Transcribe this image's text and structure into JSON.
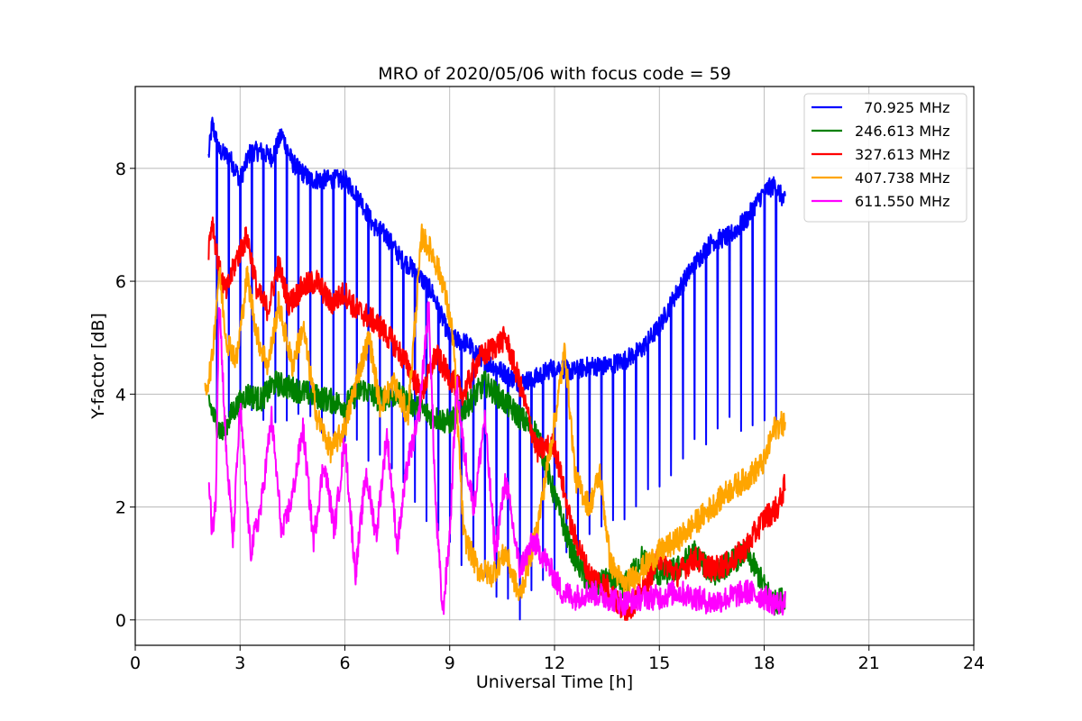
{
  "chart_data": {
    "type": "line",
    "title": "MRO of 2020/05/06 with focus code = 59",
    "xlabel": "Universal Time [h]",
    "ylabel": "Y-factor [dB]",
    "xlim": [
      0,
      24
    ],
    "ylim": [
      -0.45,
      9.45
    ],
    "xticks": [
      0,
      3,
      6,
      9,
      12,
      15,
      18,
      21,
      24
    ],
    "yticks": [
      0,
      2,
      4,
      6,
      8
    ],
    "grid": true,
    "legend_position": "top-right",
    "series": [
      {
        "name": "  70.925 MHz",
        "color": "#0000ff",
        "dips": true,
        "dip_floor": [
          [
            2.1,
            3.5
          ],
          [
            5.0,
            3.4
          ],
          [
            7.5,
            2.5
          ],
          [
            8.5,
            1.5
          ],
          [
            10.0,
            0.5
          ],
          [
            11.0,
            0.0
          ],
          [
            12.0,
            0.7
          ],
          [
            13.0,
            1.3
          ],
          [
            14.5,
            2.0
          ],
          [
            16.0,
            3.0
          ],
          [
            17.0,
            3.3
          ],
          [
            18.6,
            3.3
          ]
        ],
        "points": [
          [
            2.1,
            8.2
          ],
          [
            2.2,
            8.8
          ],
          [
            2.4,
            8.3
          ],
          [
            2.7,
            8.2
          ],
          [
            3.0,
            7.8
          ],
          [
            3.3,
            8.3
          ],
          [
            3.6,
            8.3
          ],
          [
            3.9,
            8.2
          ],
          [
            4.2,
            8.6
          ],
          [
            4.5,
            8.1
          ],
          [
            5.0,
            7.8
          ],
          [
            5.5,
            7.8
          ],
          [
            6.0,
            7.8
          ],
          [
            6.4,
            7.5
          ],
          [
            6.8,
            7.0
          ],
          [
            7.2,
            6.8
          ],
          [
            7.6,
            6.4
          ],
          [
            8.0,
            6.2
          ],
          [
            8.5,
            5.8
          ],
          [
            9.0,
            5.0
          ],
          [
            9.5,
            4.9
          ],
          [
            10.0,
            4.6
          ],
          [
            10.5,
            4.4
          ],
          [
            11.0,
            4.2
          ],
          [
            11.5,
            4.3
          ],
          [
            12.0,
            4.5
          ],
          [
            12.5,
            4.4
          ],
          [
            13.0,
            4.5
          ],
          [
            13.5,
            4.5
          ],
          [
            14.0,
            4.6
          ],
          [
            14.5,
            4.8
          ],
          [
            15.0,
            5.2
          ],
          [
            15.5,
            5.8
          ],
          [
            16.0,
            6.3
          ],
          [
            16.5,
            6.7
          ],
          [
            17.0,
            6.8
          ],
          [
            17.5,
            7.1
          ],
          [
            18.0,
            7.6
          ],
          [
            18.3,
            7.7
          ],
          [
            18.6,
            7.4
          ]
        ]
      },
      {
        "name": "246.613 MHz",
        "color": "#008000",
        "points": [
          [
            2.1,
            3.9
          ],
          [
            2.3,
            3.5
          ],
          [
            2.5,
            3.3
          ],
          [
            2.8,
            3.7
          ],
          [
            3.2,
            4.0
          ],
          [
            3.6,
            3.9
          ],
          [
            4.0,
            4.2
          ],
          [
            4.5,
            4.1
          ],
          [
            5.0,
            4.0
          ],
          [
            5.5,
            3.9
          ],
          [
            6.0,
            3.8
          ],
          [
            6.5,
            4.1
          ],
          [
            7.0,
            3.9
          ],
          [
            7.5,
            4.0
          ],
          [
            8.0,
            3.8
          ],
          [
            8.5,
            3.6
          ],
          [
            9.0,
            3.5
          ],
          [
            9.5,
            3.8
          ],
          [
            10.0,
            4.2
          ],
          [
            10.5,
            3.9
          ],
          [
            11.0,
            3.6
          ],
          [
            11.5,
            3.3
          ],
          [
            12.0,
            2.2
          ],
          [
            12.5,
            1.2
          ],
          [
            13.0,
            0.6
          ],
          [
            13.5,
            0.7
          ],
          [
            14.0,
            0.6
          ],
          [
            14.5,
            1.1
          ],
          [
            15.0,
            0.8
          ],
          [
            15.5,
            0.9
          ],
          [
            16.0,
            1.2
          ],
          [
            16.5,
            0.8
          ],
          [
            17.0,
            1.0
          ],
          [
            17.5,
            1.2
          ],
          [
            18.0,
            0.6
          ],
          [
            18.3,
            0.3
          ],
          [
            18.6,
            0.4
          ]
        ]
      },
      {
        "name": "327.613 MHz",
        "color": "#ff0000",
        "points": [
          [
            2.1,
            6.6
          ],
          [
            2.2,
            7.1
          ],
          [
            2.4,
            6.2
          ],
          [
            2.6,
            5.8
          ],
          [
            2.9,
            6.4
          ],
          [
            3.2,
            6.8
          ],
          [
            3.5,
            5.8
          ],
          [
            3.8,
            5.5
          ],
          [
            4.1,
            6.3
          ],
          [
            4.4,
            5.6
          ],
          [
            4.8,
            5.9
          ],
          [
            5.2,
            6.0
          ],
          [
            5.6,
            5.6
          ],
          [
            6.0,
            5.8
          ],
          [
            6.3,
            5.5
          ],
          [
            6.6,
            5.4
          ],
          [
            7.0,
            5.2
          ],
          [
            7.4,
            4.9
          ],
          [
            7.8,
            4.5
          ],
          [
            8.2,
            4.0
          ],
          [
            8.6,
            4.7
          ],
          [
            9.0,
            4.3
          ],
          [
            9.4,
            4.0
          ],
          [
            9.8,
            4.6
          ],
          [
            10.2,
            4.8
          ],
          [
            10.6,
            5.0
          ],
          [
            11.0,
            4.2
          ],
          [
            11.5,
            3.0
          ],
          [
            12.0,
            3.1
          ],
          [
            12.5,
            1.6
          ],
          [
            13.0,
            0.8
          ],
          [
            13.5,
            0.6
          ],
          [
            14.0,
            0.1
          ],
          [
            14.5,
            0.5
          ],
          [
            15.0,
            1.1
          ],
          [
            15.5,
            0.8
          ],
          [
            16.0,
            1.1
          ],
          [
            16.5,
            0.9
          ],
          [
            17.0,
            1.0
          ],
          [
            17.5,
            1.3
          ],
          [
            18.0,
            1.8
          ],
          [
            18.4,
            2.0
          ],
          [
            18.6,
            2.4
          ]
        ]
      },
      {
        "name": "407.738 MHz",
        "color": "#ffa500",
        "points": [
          [
            2.0,
            4.0
          ],
          [
            2.2,
            4.6
          ],
          [
            2.4,
            6.2
          ],
          [
            2.6,
            5.0
          ],
          [
            2.9,
            4.6
          ],
          [
            3.2,
            6.1
          ],
          [
            3.5,
            5.0
          ],
          [
            3.8,
            4.5
          ],
          [
            4.1,
            5.6
          ],
          [
            4.5,
            4.5
          ],
          [
            4.8,
            5.2
          ],
          [
            5.2,
            3.6
          ],
          [
            5.6,
            3.0
          ],
          [
            6.0,
            3.4
          ],
          [
            6.4,
            4.4
          ],
          [
            6.7,
            5.0
          ],
          [
            7.0,
            3.8
          ],
          [
            7.4,
            4.2
          ],
          [
            7.8,
            3.6
          ],
          [
            8.2,
            6.8
          ],
          [
            8.5,
            6.5
          ],
          [
            8.8,
            6.0
          ],
          [
            9.1,
            5.0
          ],
          [
            9.4,
            1.5
          ],
          [
            9.8,
            0.9
          ],
          [
            10.2,
            0.8
          ],
          [
            10.6,
            1.2
          ],
          [
            11.0,
            0.4
          ],
          [
            11.5,
            1.6
          ],
          [
            12.0,
            3.5
          ],
          [
            12.3,
            4.8
          ],
          [
            12.6,
            2.5
          ],
          [
            13.0,
            2.0
          ],
          [
            13.3,
            2.6
          ],
          [
            13.6,
            1.0
          ],
          [
            14.0,
            0.6
          ],
          [
            14.5,
            0.9
          ],
          [
            15.0,
            1.2
          ],
          [
            15.5,
            1.4
          ],
          [
            16.0,
            1.7
          ],
          [
            16.5,
            2.0
          ],
          [
            17.0,
            2.3
          ],
          [
            17.5,
            2.5
          ],
          [
            18.0,
            2.8
          ],
          [
            18.3,
            3.4
          ],
          [
            18.6,
            3.5
          ]
        ]
      },
      {
        "name": "611.550 MHz",
        "color": "#ff00ff",
        "points": [
          [
            2.1,
            2.4
          ],
          [
            2.2,
            1.6
          ],
          [
            2.3,
            2.0
          ],
          [
            2.4,
            5.8
          ],
          [
            2.6,
            3.0
          ],
          [
            2.8,
            1.4
          ],
          [
            3.0,
            3.8
          ],
          [
            3.3,
            1.2
          ],
          [
            3.6,
            2.0
          ],
          [
            3.9,
            3.6
          ],
          [
            4.2,
            1.5
          ],
          [
            4.5,
            2.2
          ],
          [
            4.8,
            3.4
          ],
          [
            5.1,
            1.4
          ],
          [
            5.4,
            2.8
          ],
          [
            5.7,
            1.6
          ],
          [
            6.0,
            3.2
          ],
          [
            6.3,
            0.8
          ],
          [
            6.6,
            2.6
          ],
          [
            6.9,
            1.5
          ],
          [
            7.2,
            3.3
          ],
          [
            7.5,
            1.3
          ],
          [
            7.8,
            2.8
          ],
          [
            8.1,
            3.5
          ],
          [
            8.4,
            5.6
          ],
          [
            8.6,
            2.0
          ],
          [
            8.8,
            0.1
          ],
          [
            9.0,
            1.5
          ],
          [
            9.2,
            4.2
          ],
          [
            9.4,
            3.0
          ],
          [
            9.7,
            2.0
          ],
          [
            10.0,
            3.6
          ],
          [
            10.3,
            1.2
          ],
          [
            10.6,
            2.5
          ],
          [
            11.0,
            0.9
          ],
          [
            11.4,
            1.4
          ],
          [
            11.8,
            1.0
          ],
          [
            12.2,
            0.5
          ],
          [
            12.6,
            0.4
          ],
          [
            13.0,
            0.5
          ],
          [
            13.5,
            0.4
          ],
          [
            14.0,
            0.3
          ],
          [
            14.5,
            0.4
          ],
          [
            15.0,
            0.4
          ],
          [
            15.5,
            0.5
          ],
          [
            16.0,
            0.4
          ],
          [
            16.5,
            0.3
          ],
          [
            17.0,
            0.4
          ],
          [
            17.5,
            0.5
          ],
          [
            18.0,
            0.4
          ],
          [
            18.3,
            0.3
          ],
          [
            18.6,
            0.3
          ]
        ]
      }
    ]
  }
}
